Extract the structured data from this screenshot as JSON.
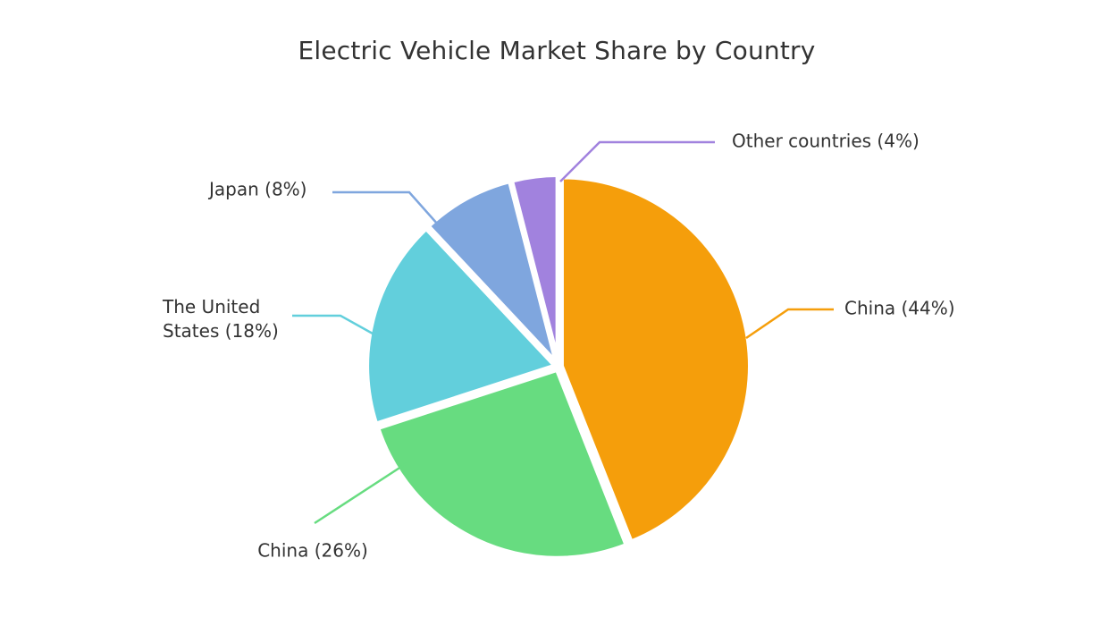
{
  "chart_data": {
    "type": "pie",
    "title": "Electric Vehicle Market Share by Country",
    "slices": [
      {
        "label": "China (44%)",
        "value": 44,
        "color": "#f59e0b"
      },
      {
        "label": "China (26%)",
        "value": 26,
        "color": "#67dc80"
      },
      {
        "label": "The United States (18%)",
        "value": 18,
        "color": "#62cfdc"
      },
      {
        "label": "Japan (8%)",
        "value": 8,
        "color": "#7fa6de"
      },
      {
        "label": "Other countries (4%)",
        "value": 4,
        "color": "#a182de"
      }
    ],
    "legend": "none"
  }
}
